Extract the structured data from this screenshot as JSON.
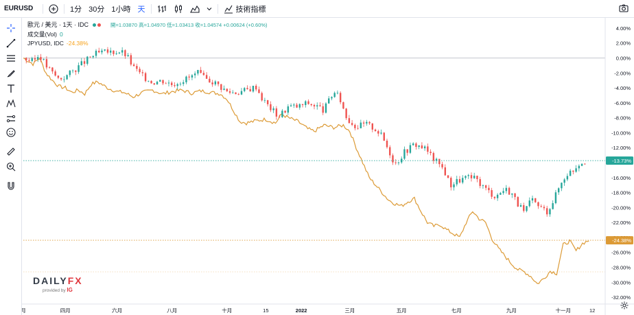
{
  "toolbar": {
    "symbol": "EURUSD",
    "intervals": [
      "1分",
      "30分",
      "1小時",
      "天"
    ],
    "indicators_label": "技術指標"
  },
  "legend": {
    "title": "歐元 / 美元 · 1天 · IDC",
    "ohlc": "開=1.03870 高=1.04970 低=1.03413 收=1.04574 +0.00624 (+0.60%)",
    "volume_label": "成交量(Vol)",
    "volume_value": "0",
    "compare_label": "JPYUSD, IDC",
    "compare_value": "-24.38%"
  },
  "watermark": {
    "brand_a": "DAILY",
    "brand_b": "FX",
    "provided_by": "provided by",
    "ig": "IG"
  },
  "colors": {
    "up": "#26a69a",
    "down": "#ef5350",
    "compare": "#dc9a35",
    "text": "#131722"
  },
  "chart_data": {
    "type": "line",
    "y_unit": "%",
    "ylim": [
      -33,
      5
    ],
    "y_ticks": [
      "4.00%",
      "2.00%",
      "0.00%",
      "-2.00%",
      "-4.00%",
      "-6.00%",
      "-8.00%",
      "-10.00%",
      "-12.00%",
      "-14.00%",
      "-16.00%",
      "-18.00%",
      "-20.00%",
      "-22.00%",
      "-24.00%",
      "-26.00%",
      "-28.00%",
      "-30.00%",
      "-32.00%"
    ],
    "x_ticks": [
      {
        "label": "月",
        "at": 0
      },
      {
        "label": "四月",
        "at": 13
      },
      {
        "label": "六月",
        "at": 29
      },
      {
        "label": "八月",
        "at": 46
      },
      {
        "label": "十月",
        "at": 63
      },
      {
        "label": "15",
        "at": 75
      },
      {
        "label": "2022",
        "at": 86
      },
      {
        "label": "三月",
        "at": 101
      },
      {
        "label": "五月",
        "at": 117
      },
      {
        "label": "七月",
        "at": 134
      },
      {
        "label": "九月",
        "at": 151
      },
      {
        "label": "十一月",
        "at": 167
      },
      {
        "label": "12",
        "at": 176
      }
    ],
    "x_count": 180,
    "price_labels": [
      {
        "text": "-13.73%",
        "value": -13.73,
        "series": "EURUSD"
      },
      {
        "text": "-24.38%",
        "value": -24.38,
        "series": "JPYUSD"
      }
    ],
    "series": [
      {
        "name": "EURUSD",
        "style": "candles",
        "points": [
          [
            0,
            0
          ],
          [
            3,
            -0.5
          ],
          [
            5,
            0.5
          ],
          [
            7,
            -1
          ],
          [
            9,
            -2
          ],
          [
            11,
            -2.8
          ],
          [
            13,
            -2.5
          ],
          [
            16,
            -1.5
          ],
          [
            19,
            -0.5
          ],
          [
            22,
            0.5
          ],
          [
            24,
            0.7
          ],
          [
            27,
            0.8
          ],
          [
            30,
            0.9
          ],
          [
            32,
            0.3
          ],
          [
            34,
            -1.2
          ],
          [
            37,
            -2.5
          ],
          [
            40,
            -3.2
          ],
          [
            43,
            -3
          ],
          [
            46,
            -3.5
          ],
          [
            49,
            -3
          ],
          [
            52,
            -2.5
          ],
          [
            54,
            -2
          ],
          [
            56,
            -2.8
          ],
          [
            58,
            -3
          ],
          [
            60,
            -3.5
          ],
          [
            63,
            -4.5
          ],
          [
            66,
            -4.6
          ],
          [
            69,
            -4.3
          ],
          [
            72,
            -3.8
          ],
          [
            74,
            -5.5
          ],
          [
            76,
            -6.5
          ],
          [
            79,
            -7.8
          ],
          [
            82,
            -6.5
          ],
          [
            85,
            -6.5
          ],
          [
            88,
            -6
          ],
          [
            91,
            -6.5
          ],
          [
            93,
            -7
          ],
          [
            96,
            -4.5
          ],
          [
            98,
            -5.5
          ],
          [
            100,
            -8
          ],
          [
            103,
            -9.2
          ],
          [
            106,
            -8.8
          ],
          [
            109,
            -9.5
          ],
          [
            111,
            -10.5
          ],
          [
            113,
            -12.3
          ],
          [
            115,
            -14.2
          ],
          [
            118,
            -12.5
          ],
          [
            121,
            -11.5
          ],
          [
            124,
            -12
          ],
          [
            126,
            -13
          ],
          [
            128,
            -14
          ],
          [
            130,
            -14.8
          ],
          [
            132,
            -17
          ],
          [
            134,
            -16.5
          ],
          [
            137,
            -16
          ],
          [
            140,
            -16.2
          ],
          [
            143,
            -17.5
          ],
          [
            146,
            -18.5
          ],
          [
            149,
            -17.5
          ],
          [
            151,
            -18
          ],
          [
            153,
            -19.5
          ],
          [
            155,
            -20.8
          ],
          [
            157,
            -19
          ],
          [
            160,
            -20
          ],
          [
            162,
            -20.5
          ],
          [
            164,
            -19
          ],
          [
            166,
            -17
          ],
          [
            168,
            -15.5
          ],
          [
            170,
            -15
          ],
          [
            172,
            -14
          ],
          [
            174,
            -13.73
          ]
        ]
      },
      {
        "name": "JPYUSD",
        "style": "line",
        "points": [
          [
            0,
            0
          ],
          [
            3,
            -0.8
          ],
          [
            5,
            0
          ],
          [
            7,
            -2
          ],
          [
            9,
            -3
          ],
          [
            11,
            -3.8
          ],
          [
            13,
            -4
          ],
          [
            15,
            -4.6
          ],
          [
            17,
            -4.3
          ],
          [
            19,
            -4.8
          ],
          [
            21,
            -3.5
          ],
          [
            23,
            -3.2
          ],
          [
            26,
            -4
          ],
          [
            29,
            -4.5
          ],
          [
            31,
            -4.6
          ],
          [
            34,
            -5.2
          ],
          [
            37,
            -4.6
          ],
          [
            40,
            -4.3
          ],
          [
            43,
            -4.8
          ],
          [
            46,
            -4.5
          ],
          [
            49,
            -4.3
          ],
          [
            52,
            -4.7
          ],
          [
            55,
            -4.4
          ],
          [
            58,
            -4.6
          ],
          [
            61,
            -4.8
          ],
          [
            63,
            -5.5
          ],
          [
            65,
            -7
          ],
          [
            67,
            -8.5
          ],
          [
            69,
            -8.7
          ],
          [
            72,
            -8.4
          ],
          [
            75,
            -8.2
          ],
          [
            78,
            -8.7
          ],
          [
            80,
            -7.5
          ],
          [
            82,
            -8
          ],
          [
            85,
            -8.5
          ],
          [
            88,
            -9.5
          ],
          [
            90,
            -9.8
          ],
          [
            93,
            -9
          ],
          [
            96,
            -9.3
          ],
          [
            99,
            -9
          ],
          [
            101,
            -9.8
          ],
          [
            103,
            -12
          ],
          [
            105,
            -14
          ],
          [
            107,
            -16
          ],
          [
            109,
            -17
          ],
          [
            111,
            -18
          ],
          [
            113,
            -19
          ],
          [
            115,
            -19.5
          ],
          [
            117,
            -19.8
          ],
          [
            119,
            -19.2
          ],
          [
            121,
            -18.8
          ],
          [
            123,
            -20.5
          ],
          [
            125,
            -22
          ],
          [
            127,
            -22.5
          ],
          [
            129,
            -22.3
          ],
          [
            131,
            -23
          ],
          [
            133,
            -23.5
          ],
          [
            135,
            -24
          ],
          [
            137,
            -22
          ],
          [
            139,
            -20.5
          ],
          [
            141,
            -21.5
          ],
          [
            143,
            -22
          ],
          [
            145,
            -24.2
          ],
          [
            147,
            -25.5
          ],
          [
            149,
            -26.5
          ],
          [
            151,
            -27.5
          ],
          [
            153,
            -28.3
          ],
          [
            155,
            -28.6
          ],
          [
            157,
            -29.2
          ],
          [
            159,
            -30.2
          ],
          [
            161,
            -29.5
          ],
          [
            163,
            -28.5
          ],
          [
            165,
            -28.8
          ],
          [
            167,
            -25
          ],
          [
            169,
            -24.5
          ],
          [
            171,
            -25.8
          ],
          [
            173,
            -24.8
          ],
          [
            175,
            -24.38
          ]
        ]
      }
    ]
  }
}
